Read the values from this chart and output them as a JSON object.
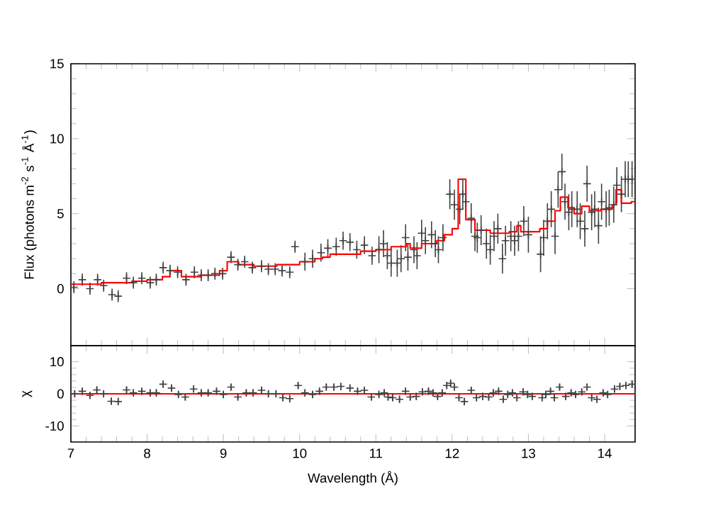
{
  "chart_data": [
    {
      "type": "scatter",
      "ylabel": "Flux (photons m$^{-2}$ s$^{-1}$ Å$^{-1}$)",
      "xlim": [
        7,
        14.4
      ],
      "ylim": [
        -3.8,
        15
      ],
      "xticks": [
        7,
        8,
        9,
        10,
        11,
        12,
        13,
        14
      ],
      "yticks": [
        0,
        5,
        10,
        15
      ],
      "tick_labels": "y",
      "series": [
        {
          "color": "#404040",
          "marker": "cross",
          "x": [
            7.04,
            7.15,
            7.25,
            7.35,
            7.43,
            7.54,
            7.62,
            7.73,
            7.82,
            7.93,
            8.04,
            8.12,
            8.21,
            8.3,
            8.4,
            8.51,
            8.62,
            8.71,
            8.8,
            8.89,
            8.99,
            9.1,
            9.19,
            9.28,
            9.38,
            9.5,
            9.59,
            9.68,
            9.77,
            9.87,
            9.94,
            10.07,
            10.17,
            10.28,
            10.37,
            10.48,
            10.57,
            10.66,
            10.75,
            10.85,
            10.95,
            11.04,
            11.1,
            11.15,
            11.2,
            11.28,
            11.33,
            11.39,
            11.42,
            11.5,
            11.54,
            11.6,
            11.65,
            11.73,
            11.78,
            11.82,
            11.88,
            11.97,
            12.03,
            12.1,
            12.14,
            12.18,
            12.25,
            12.3,
            12.33,
            12.38,
            12.45,
            12.5,
            12.55,
            12.6,
            12.66,
            12.7,
            12.77,
            12.82,
            12.87,
            12.94,
            13.0,
            13.16,
            13.2,
            13.25,
            13.3,
            13.35,
            13.39,
            13.44,
            13.48,
            13.53,
            13.57,
            13.64,
            13.68,
            13.74,
            13.77,
            13.83,
            13.87,
            13.92,
            13.96,
            14.02,
            14.06,
            14.12,
            14.16,
            14.22,
            14.27,
            14.31,
            14.36
          ],
          "values": [
            0.1,
            0.6,
            0.0,
            0.6,
            0.2,
            -0.4,
            -0.5,
            0.7,
            0.4,
            0.7,
            0.4,
            0.6,
            1.4,
            1.2,
            1.1,
            0.6,
            1.1,
            0.9,
            0.9,
            1.0,
            1.0,
            2.1,
            1.6,
            1.8,
            1.4,
            1.5,
            1.3,
            1.3,
            1.2,
            1.1,
            2.8,
            1.8,
            2.0,
            2.4,
            2.7,
            2.8,
            3.2,
            3.1,
            2.6,
            2.9,
            2.2,
            2.6,
            3.0,
            2.2,
            1.7,
            1.7,
            2.0,
            3.4,
            2.1,
            2.6,
            2.2,
            3.7,
            3.2,
            3.6,
            3.0,
            2.6,
            3.4,
            6.3,
            5.6,
            5.3,
            6.3,
            5.8,
            4.7,
            3.5,
            3.4,
            3.9,
            3.0,
            2.6,
            3.5,
            4.0,
            2.0,
            3.2,
            3.5,
            3.2,
            3.5,
            4.5,
            3.6,
            2.3,
            3.4,
            4.5,
            5.3,
            3.5,
            6.6,
            7.8,
            5.8,
            5.1,
            5.3,
            5.3,
            4.5,
            4.0,
            7.0,
            5.1,
            5.3,
            4.2,
            5.8,
            5.3,
            5.4,
            5.6,
            6.9,
            6.3,
            7.3,
            7.3,
            7.3
          ],
          "errors": [
            0.4,
            0.4,
            0.4,
            0.4,
            0.4,
            0.4,
            0.4,
            0.4,
            0.4,
            0.4,
            0.4,
            0.4,
            0.4,
            0.4,
            0.4,
            0.4,
            0.4,
            0.4,
            0.4,
            0.4,
            0.4,
            0.4,
            0.4,
            0.4,
            0.4,
            0.4,
            0.4,
            0.4,
            0.4,
            0.4,
            0.4,
            0.6,
            0.6,
            0.6,
            0.6,
            0.6,
            0.6,
            0.6,
            0.6,
            0.6,
            0.6,
            0.9,
            0.9,
            0.9,
            0.9,
            0.9,
            0.9,
            0.9,
            0.9,
            0.9,
            0.9,
            0.9,
            0.9,
            0.9,
            0.9,
            0.9,
            0.9,
            1.0,
            1.0,
            1.0,
            1.0,
            1.0,
            1.0,
            1.0,
            1.0,
            1.0,
            1.0,
            1.0,
            1.0,
            1.0,
            1.0,
            1.0,
            1.0,
            1.0,
            1.0,
            1.0,
            1.2,
            1.2,
            1.2,
            1.2,
            1.2,
            1.2,
            1.2,
            1.2,
            1.2,
            1.2,
            1.2,
            1.2,
            1.2,
            1.2,
            1.2,
            1.2,
            1.2,
            1.2,
            1.2,
            1.2,
            1.2,
            1.2,
            1.2,
            1.2,
            1.2,
            1.2,
            1.2
          ]
        },
        {
          "type": "step",
          "color": "#ff0000",
          "x": [
            7.0,
            7.4,
            7.8,
            8.0,
            8.2,
            8.3,
            8.45,
            8.7,
            8.95,
            9.05,
            9.2,
            9.4,
            9.7,
            10.0,
            10.2,
            10.3,
            10.4,
            10.6,
            10.8,
            11.0,
            11.2,
            11.4,
            11.45,
            11.6,
            11.8,
            11.9,
            12.0,
            12.08,
            12.18,
            12.3,
            12.5,
            12.75,
            12.85,
            12.9,
            13.05,
            13.15,
            13.25,
            13.35,
            13.42,
            13.52,
            13.6,
            13.7,
            13.8,
            13.95,
            14.1,
            14.15,
            14.22,
            14.35,
            14.4
          ],
          "values": [
            0.3,
            0.4,
            0.5,
            0.6,
            0.8,
            1.2,
            0.8,
            0.9,
            1.2,
            1.8,
            1.6,
            1.5,
            1.6,
            1.8,
            2.0,
            2.1,
            2.3,
            2.3,
            2.5,
            2.6,
            2.8,
            3.0,
            2.7,
            3.0,
            3.2,
            3.6,
            4.0,
            7.3,
            4.6,
            3.9,
            3.7,
            3.8,
            4.2,
            3.8,
            3.8,
            4.0,
            4.5,
            5.2,
            6.1,
            5.4,
            5.0,
            5.5,
            5.2,
            5.3,
            5.6,
            6.6,
            5.7,
            5.8,
            5.8
          ]
        }
      ]
    },
    {
      "type": "scatter",
      "xlabel": "Wavelength (Å)",
      "ylabel": "χ",
      "xlim": [
        7,
        14.4
      ],
      "ylim": [
        -15,
        15
      ],
      "xticks": [
        7,
        8,
        9,
        10,
        11,
        12,
        13,
        14
      ],
      "yticks": [
        -10,
        0,
        10
      ],
      "marker": "cross",
      "ref_lines": [
        {
          "axis": "y",
          "value": 0,
          "color": "#ff0000"
        }
      ],
      "series": [
        {
          "color": "#404040",
          "x": [
            7.05,
            7.15,
            7.25,
            7.34,
            7.43,
            7.53,
            7.62,
            7.73,
            7.82,
            7.93,
            8.04,
            8.12,
            8.21,
            8.32,
            8.41,
            8.5,
            8.61,
            8.71,
            8.8,
            8.91,
            9.0,
            9.1,
            9.19,
            9.3,
            9.39,
            9.5,
            9.59,
            9.69,
            9.78,
            9.87,
            9.98,
            10.07,
            10.17,
            10.26,
            10.35,
            10.45,
            10.54,
            10.66,
            10.76,
            10.85,
            10.94,
            11.04,
            11.11,
            11.16,
            11.22,
            11.31,
            11.39,
            11.45,
            11.53,
            11.61,
            11.69,
            11.75,
            11.81,
            11.87,
            11.93,
            11.98,
            12.03,
            12.09,
            12.16,
            12.25,
            12.32,
            12.4,
            12.48,
            12.54,
            12.61,
            12.67,
            12.73,
            12.79,
            12.85,
            12.93,
            12.99,
            13.05,
            13.18,
            13.23,
            13.29,
            13.34,
            13.41,
            13.49,
            13.56,
            13.62,
            13.7,
            13.77,
            13.83,
            13.9,
            13.98,
            14.04,
            14.13,
            14.2,
            14.28,
            14.36
          ],
          "values": [
            0,
            0.8,
            -0.5,
            1.2,
            0,
            -2.3,
            -2.4,
            1.2,
            0.3,
            0.8,
            0.3,
            0.3,
            3,
            1.8,
            -0.2,
            -1,
            1.5,
            0.3,
            0.3,
            0.8,
            -0.2,
            2.1,
            -1,
            0.3,
            0.3,
            1.1,
            0,
            0,
            -1.2,
            -1.5,
            2.6,
            0.3,
            -0.2,
            0.8,
            2.1,
            2.1,
            2.3,
            1.8,
            0.8,
            1.1,
            -1,
            -0.2,
            0.3,
            -1,
            -1.2,
            -1.7,
            0.8,
            -1,
            -0.8,
            0.6,
            0.8,
            0.3,
            -0.8,
            0.3,
            2.6,
            3.3,
            2.1,
            -1.2,
            -2.4,
            1.1,
            -1.2,
            -0.8,
            -1,
            0.3,
            0.8,
            -1.7,
            -0.2,
            0.3,
            -1.2,
            0.6,
            -0.2,
            -0.8,
            -1.2,
            -0.2,
            0.8,
            -1.2,
            2.1,
            -0.8,
            0.3,
            -0.2,
            0.6,
            2.1,
            -1.2,
            -1.7,
            0.3,
            -0.2,
            1.5,
            2.3,
            2.6,
            3
          ],
          "errors": [
            1,
            1,
            1,
            1,
            1,
            1,
            1,
            1,
            1,
            1,
            1,
            1,
            1,
            1,
            1,
            1,
            1,
            1,
            1,
            1,
            1,
            1,
            1,
            1,
            1,
            1,
            1,
            1,
            1,
            1,
            1,
            1,
            1,
            1,
            1,
            1,
            1,
            1,
            1,
            1,
            1,
            1,
            1,
            1,
            1,
            1,
            1,
            1,
            1,
            1,
            1,
            1,
            1,
            1,
            1,
            1,
            1,
            1,
            1,
            1,
            1,
            1,
            1,
            1,
            1,
            1,
            1,
            1,
            1,
            1,
            1,
            1,
            1,
            1,
            1,
            1,
            1,
            1,
            1,
            1,
            1,
            1,
            1,
            1,
            1,
            1,
            1,
            1,
            1,
            1
          ]
        }
      ]
    }
  ]
}
